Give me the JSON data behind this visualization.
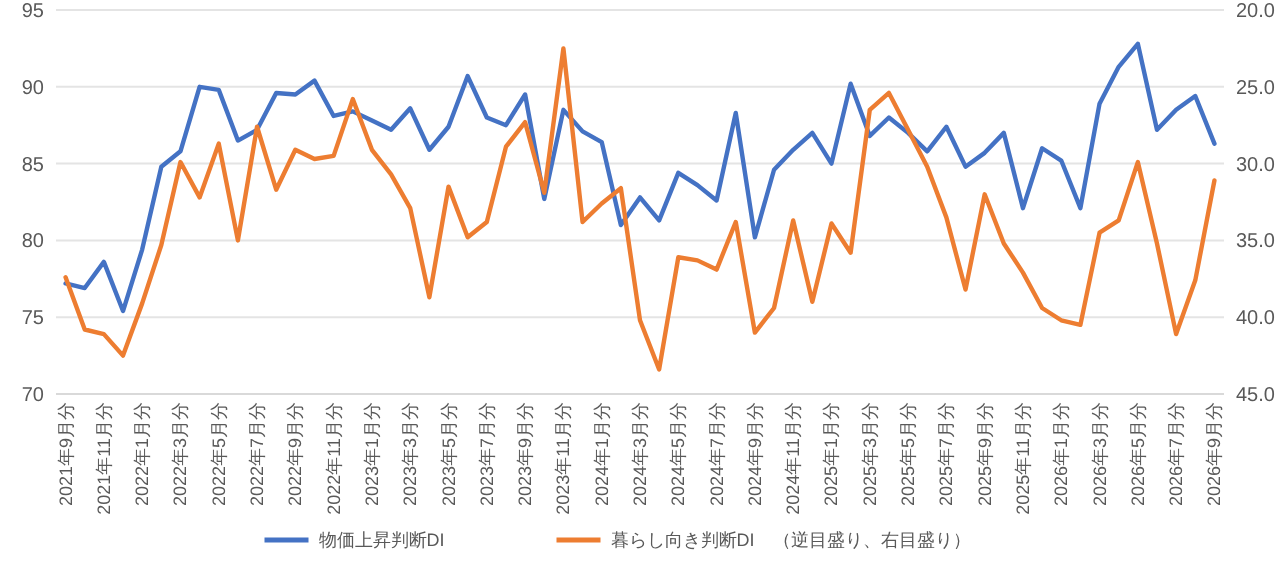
{
  "chart_data": {
    "type": "line",
    "categories": [
      "2021年9月分",
      null,
      "2021年11月分",
      null,
      "2022年1月分",
      null,
      "2022年3月分",
      null,
      "2022年5月分",
      null,
      "2022年7月分",
      null,
      "2022年9月分",
      null,
      "2022年11月分",
      null,
      "2023年1月分",
      null,
      "2023年3月分",
      null,
      "2023年5月分",
      null,
      "2023年7月分",
      null,
      "2023年9月分",
      null,
      "2023年11月分",
      null,
      "2024年1月分",
      null,
      "2024年3月分",
      null,
      "2024年5月分",
      null,
      "2024年7月分",
      null,
      "2024年9月分",
      null,
      "2024年11月分",
      null,
      "2025年1月分",
      null,
      "2025年3月分",
      null,
      "2025年5月分",
      null,
      "2025年7月分",
      null,
      "2025年9月分",
      null,
      "2025年11月分",
      null,
      "2026年1月分",
      null,
      "2026年3月分",
      null,
      "2026年5月分",
      null,
      "2026年7月分",
      null,
      "2026年9月分"
    ],
    "series": [
      {
        "name": "物価上昇判断DI",
        "color": "#4472c4",
        "values": [
          77.2,
          76.9,
          78.6,
          75.4,
          79.4,
          84.8,
          85.8,
          90.0,
          89.8,
          86.5,
          87.2,
          89.6,
          89.5,
          90.4,
          88.1,
          88.4,
          87.8,
          87.2,
          88.6,
          85.9,
          87.4,
          90.7,
          88.0,
          87.5,
          89.5,
          82.7,
          88.5,
          87.1,
          86.4,
          81.0,
          82.8,
          81.3,
          84.4,
          83.6,
          82.6,
          88.3,
          80.2,
          84.6,
          85.9,
          87.0,
          85.0,
          90.2,
          86.8,
          88.0,
          87.0,
          85.8,
          87.4,
          84.8,
          85.7,
          87.0,
          82.1,
          86.0,
          85.2,
          82.1,
          88.9,
          91.3,
          92.8,
          87.2,
          88.5,
          89.4,
          86.3
        ]
      },
      {
        "name": "暮らし向き判断DI　（逆目盛り、右目盛り）",
        "color": "#ed7d31",
        "axis": "y2",
        "values": [
          37.4,
          40.8,
          41.1,
          42.5,
          39.1,
          35.3,
          29.9,
          32.2,
          28.7,
          35.0,
          27.6,
          31.7,
          29.1,
          29.7,
          29.5,
          25.8,
          29.1,
          30.7,
          32.9,
          38.7,
          31.5,
          34.8,
          33.8,
          28.9,
          27.3,
          31.9,
          22.5,
          33.8,
          32.6,
          31.6,
          40.2,
          43.4,
          36.1,
          36.3,
          36.9,
          33.8,
          41.0,
          39.4,
          33.7,
          39.0,
          33.9,
          35.8,
          26.5,
          25.4,
          27.8,
          30.2,
          33.5,
          38.2,
          32.0,
          35.2,
          37.1,
          39.4,
          40.2,
          40.5,
          34.5,
          33.7,
          29.9,
          35.2,
          41.1,
          37.6,
          31.1
        ]
      }
    ],
    "ylim": [
      70,
      95
    ],
    "yticks": [
      70,
      75,
      80,
      85,
      90,
      95
    ],
    "y2lim": [
      45,
      20
    ],
    "y2ticks": [
      {
        "value": 20,
        "label": "20.0"
      },
      {
        "value": 25,
        "label": "25.0"
      },
      {
        "value": 30,
        "label": "30.0"
      },
      {
        "value": 35,
        "label": "35.0"
      },
      {
        "value": 40,
        "label": "40.0"
      },
      {
        "value": 45,
        "label": "45.0"
      }
    ],
    "grid": "y",
    "legend": "bottom",
    "marker": "none",
    "line_style": "solid"
  }
}
